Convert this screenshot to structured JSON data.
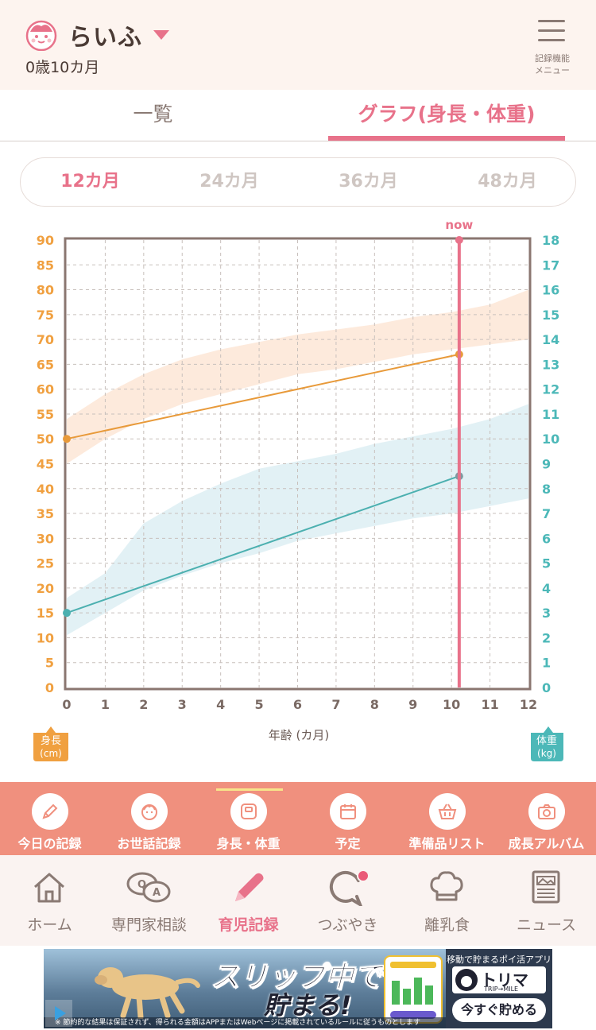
{
  "header": {
    "child_name": "らいふ",
    "child_age": "0歳10カ月",
    "menu_label_line1": "記録機能",
    "menu_label_line2": "メニュー",
    "avatar_icon": "baby-face-icon"
  },
  "tabs": [
    {
      "label": "一覧",
      "active": false
    },
    {
      "label": "グラフ(身長・体重)",
      "active": true
    }
  ],
  "range_options": [
    {
      "label": "12カ月",
      "active": true
    },
    {
      "label": "24カ月",
      "active": false
    },
    {
      "label": "36カ月",
      "active": false
    },
    {
      "label": "48カ月",
      "active": false
    }
  ],
  "chart_data": {
    "type": "line",
    "now_label": "now",
    "now_month": 10.2,
    "xlabel": "年齢 (カ月)",
    "x_ticks": [
      "0",
      "1",
      "2",
      "3",
      "4",
      "5",
      "6",
      "7",
      "8",
      "9",
      "10",
      "11",
      "12"
    ],
    "xlim": [
      0,
      12
    ],
    "left_axis": {
      "label_line1": "身長",
      "label_line2": "(cm)",
      "ylim": [
        0,
        90
      ],
      "ticks": [
        "0",
        "5",
        "10",
        "15",
        "20",
        "25",
        "30",
        "35",
        "40",
        "45",
        "50",
        "55",
        "60",
        "65",
        "70",
        "75",
        "80",
        "85",
        "90"
      ],
      "color": "#f0a040"
    },
    "right_axis": {
      "label_line1": "体重",
      "label_line2": "(kg)",
      "ylim": [
        0,
        18
      ],
      "ticks": [
        "0",
        "1",
        "2",
        "3",
        "4",
        "5",
        "6",
        "7",
        "8",
        "9",
        "10",
        "11",
        "12",
        "13",
        "14",
        "15",
        "16",
        "17",
        "18"
      ],
      "color": "#4cb8b8"
    },
    "grid": true,
    "series": [
      {
        "axis": "left",
        "color": "#e89a3a",
        "x": [
          0,
          10.2
        ],
        "y": [
          50,
          67
        ]
      },
      {
        "axis": "right",
        "color": "#4cb0b0",
        "x": [
          0,
          10.2
        ],
        "y": [
          3,
          8.5
        ]
      }
    ],
    "reference_bands": [
      {
        "axis": "left",
        "color": "#fde8d8",
        "x": [
          0,
          1,
          2,
          3,
          4,
          5,
          6,
          7,
          8,
          9,
          10,
          11,
          12
        ],
        "low": [
          45,
          50,
          54,
          57,
          59,
          61,
          63,
          64,
          65.5,
          67,
          68,
          69,
          70
        ],
        "high": [
          54,
          59,
          63,
          66,
          68,
          69.5,
          71,
          72,
          73,
          74.5,
          75.5,
          77,
          80
        ]
      },
      {
        "axis": "right",
        "color": "#dfeff4",
        "x": [
          0,
          1,
          2,
          3,
          4,
          5,
          6,
          7,
          8,
          9,
          10,
          11,
          12
        ],
        "low": [
          2.1,
          3.0,
          3.9,
          4.5,
          5.0,
          5.4,
          5.9,
          6.2,
          6.5,
          6.8,
          7.0,
          7.3,
          7.6
        ],
        "high": [
          3.6,
          4.6,
          6.6,
          7.5,
          8.2,
          8.8,
          9.1,
          9.4,
          9.8,
          10.1,
          10.4,
          10.8,
          11.4
        ]
      }
    ]
  },
  "feature_bar": [
    {
      "label": "今日の記録",
      "icon": "pencil-icon"
    },
    {
      "label": "お世話記録",
      "icon": "baby-face-icon"
    },
    {
      "label": "身長・体重",
      "icon": "scale-icon",
      "active": true
    },
    {
      "label": "予定",
      "icon": "calendar-icon"
    },
    {
      "label": "準備品リスト",
      "icon": "basket-icon"
    },
    {
      "label": "成長アルバム",
      "icon": "camera-icon"
    }
  ],
  "bottom_nav": [
    {
      "label": "ホーム",
      "icon": "home-icon"
    },
    {
      "label": "専門家相談",
      "icon": "qa-icon"
    },
    {
      "label": "育児記録",
      "icon": "pencil-icon",
      "active": true
    },
    {
      "label": "つぶやき",
      "icon": "chat-bubble-icon",
      "badge": true
    },
    {
      "label": "離乳食",
      "icon": "chef-hat-icon"
    },
    {
      "label": "ニュース",
      "icon": "news-icon"
    }
  ],
  "ad": {
    "headline_line1": "スリップ中でも",
    "headline_line2": "貯まる!",
    "app_caption": "移動で貯まるポイ活アプリ",
    "app_name": "トリマ",
    "app_sub": "TRIP→MILE",
    "cta": "今すぐ貯める",
    "disclaimer": "※ 節約的な結果は保証されず、得られる金額はAPPまたはWebページに掲載されているルールに従うものとします"
  }
}
